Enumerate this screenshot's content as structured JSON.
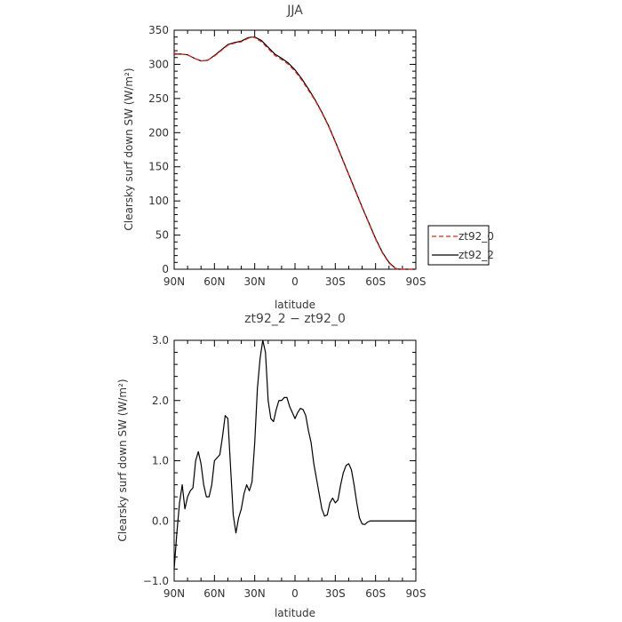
{
  "chart_data": [
    {
      "type": "line",
      "title": "JJA",
      "xlabel": "latitude",
      "ylabel": "Clearsky surf down SW (W/m²)",
      "xlim": [
        90,
        -90
      ],
      "ylim": [
        0,
        350
      ],
      "xticks": [
        90,
        60,
        30,
        0,
        -30,
        -60,
        -90
      ],
      "xtick_labels": [
        "90N",
        "60N",
        "30N",
        "0",
        "30S",
        "60S",
        "90S"
      ],
      "yticks": [
        0,
        50,
        100,
        150,
        200,
        250,
        300,
        350
      ],
      "ytick_labels": [
        "0",
        "50",
        "100",
        "150",
        "200",
        "250",
        "300",
        "350"
      ],
      "legend_placement": "right",
      "series": [
        {
          "name": "zt92_0",
          "color": "#e8241b",
          "style": "dashed",
          "x": [
            90,
            85,
            80,
            75,
            70,
            65,
            60,
            55,
            50,
            45,
            40,
            35,
            32,
            30,
            25,
            20,
            15,
            10,
            5,
            0,
            -5,
            -10,
            -15,
            -20,
            -25,
            -30,
            -35,
            -40,
            -45,
            -50,
            -55,
            -60,
            -65,
            -70,
            -75,
            -78,
            -80,
            -90
          ],
          "y": [
            316,
            315,
            314,
            309,
            305,
            306,
            312,
            320,
            328,
            331,
            333,
            338,
            340,
            339,
            333,
            323,
            313,
            307,
            300,
            290,
            277,
            262,
            247,
            229,
            209,
            186,
            162,
            138,
            114,
            90,
            67,
            44,
            24,
            9,
            1,
            0,
            0,
            0
          ]
        },
        {
          "name": "zt92_2",
          "color": "#000000",
          "style": "solid",
          "x": [
            90,
            85,
            80,
            75,
            70,
            65,
            60,
            55,
            50,
            45,
            40,
            35,
            32,
            30,
            25,
            20,
            15,
            10,
            5,
            0,
            -5,
            -10,
            -15,
            -20,
            -25,
            -30,
            -35,
            -40,
            -45,
            -50,
            -55,
            -60,
            -65,
            -70,
            -75,
            -78,
            -80,
            -90
          ],
          "y": [
            315,
            315,
            314,
            309,
            305,
            306,
            313,
            321,
            329,
            332,
            334,
            339,
            340,
            340,
            335,
            325,
            315,
            309,
            302,
            292,
            279,
            264,
            248,
            230,
            210,
            187,
            163,
            139,
            115,
            91,
            68,
            45,
            25,
            10,
            1,
            0,
            0,
            0
          ]
        }
      ]
    },
    {
      "type": "line",
      "title": "zt92_2 − zt92_0",
      "xlabel": "latitude",
      "ylabel": "Clearsky surf down SW (W/m²)",
      "xlim": [
        90,
        -90
      ],
      "ylim": [
        -1,
        3
      ],
      "xticks": [
        90,
        60,
        30,
        0,
        -30,
        -60,
        -90
      ],
      "xtick_labels": [
        "90N",
        "60N",
        "30N",
        "0",
        "30S",
        "60S",
        "90S"
      ],
      "yticks": [
        -1,
        0,
        1,
        2,
        3
      ],
      "ytick_labels": [
        "−1.0",
        "0.0",
        "1.0",
        "2.0",
        "3.0"
      ],
      "series": [
        {
          "color": "#000000",
          "style": "solid",
          "x": [
            90,
            88,
            86,
            84,
            82,
            80,
            78,
            76,
            74,
            72,
            70,
            68,
            66,
            64,
            62,
            60,
            58,
            56,
            54,
            52,
            50,
            48,
            46,
            44,
            42,
            40,
            38,
            36,
            34,
            32,
            30,
            28,
            26,
            24,
            22,
            21,
            20,
            18,
            16,
            14,
            12,
            10,
            8,
            6,
            4,
            2,
            0,
            -2,
            -4,
            -6,
            -8,
            -10,
            -12,
            -14,
            -16,
            -18,
            -20,
            -22,
            -24,
            -26,
            -28,
            -30,
            -32,
            -34,
            -36,
            -38,
            -40,
            -42,
            -44,
            -46,
            -48,
            -50,
            -52,
            -54,
            -56,
            -58,
            -60,
            -62,
            -64,
            -66,
            -68,
            -70,
            -72,
            -75,
            -80,
            -90
          ],
          "y": [
            -0.8,
            -0.2,
            0.3,
            0.6,
            0.2,
            0.4,
            0.5,
            0.55,
            1.0,
            1.15,
            0.95,
            0.6,
            0.4,
            0.4,
            0.6,
            1.0,
            1.05,
            1.1,
            1.4,
            1.75,
            1.7,
            0.9,
            0.1,
            -0.2,
            0.05,
            0.2,
            0.45,
            0.6,
            0.5,
            0.65,
            1.3,
            2.2,
            2.7,
            3.0,
            2.8,
            2.4,
            2.0,
            1.7,
            1.65,
            1.85,
            2.0,
            2.0,
            2.05,
            2.05,
            1.9,
            1.8,
            1.7,
            1.8,
            1.87,
            1.85,
            1.75,
            1.5,
            1.3,
            0.95,
            0.7,
            0.45,
            0.2,
            0.08,
            0.1,
            0.3,
            0.38,
            0.3,
            0.35,
            0.6,
            0.8,
            0.92,
            0.95,
            0.85,
            0.6,
            0.3,
            0.05,
            -0.05,
            -0.06,
            -0.02,
            0.0,
            0.0,
            0.0,
            0.0,
            0.0,
            0.0,
            0.0,
            0.0,
            0.0,
            0.0,
            0.0,
            0.0
          ]
        }
      ]
    }
  ]
}
